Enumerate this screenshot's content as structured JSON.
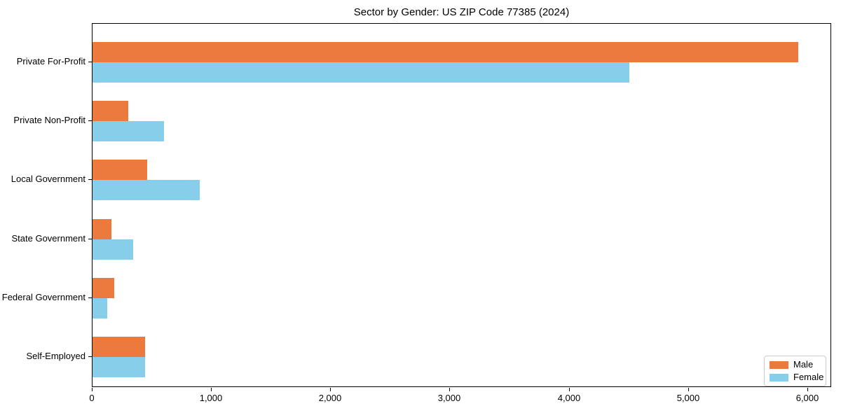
{
  "title": "Sector by Gender: US ZIP Code 77385 (2024)",
  "chart_data": {
    "type": "bar",
    "orientation": "horizontal",
    "title": "Sector by Gender: US ZIP Code 77385 (2024)",
    "categories": [
      "Private For-Profit",
      "Private Non-Profit",
      "Local Government",
      "State Government",
      "Federal Government",
      "Self-Employed"
    ],
    "series": [
      {
        "name": "Male",
        "color": "#EB7A3C",
        "values": [
          5920,
          300,
          460,
          160,
          180,
          440
        ]
      },
      {
        "name": "Female",
        "color": "#87CEEB",
        "values": [
          4500,
          600,
          900,
          340,
          125,
          440
        ]
      }
    ],
    "xlabel": "",
    "ylabel": "",
    "xlim": [
      0,
      6200
    ],
    "xticks": [
      0,
      1000,
      2000,
      3000,
      4000,
      5000,
      6000
    ],
    "xtick_labels": [
      "0",
      "1,000",
      "2,000",
      "3,000",
      "4,000",
      "5,000",
      "6,000"
    ],
    "grid": false,
    "legend_position": "lower right",
    "legend_labels": [
      "Male",
      "Female"
    ]
  }
}
